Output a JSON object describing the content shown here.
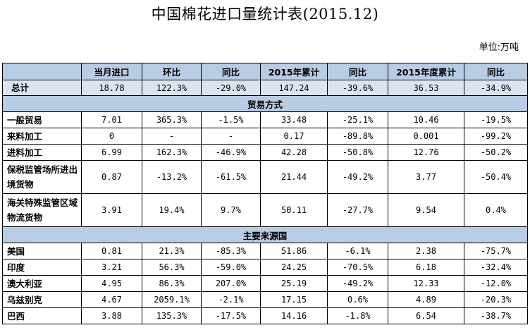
{
  "title": "中国棉花进口量统计表(2015.12)",
  "unit": "单位:万吨",
  "header": [
    "",
    "当月进口",
    "环比",
    "同比",
    "2015年累计",
    "同比",
    "2015年度累计",
    "同比"
  ],
  "total": {
    "label": "总计",
    "values": [
      "18.78",
      "122.3%",
      "-29.0%",
      "147.24",
      "-39.6%",
      "36.53",
      "-34.9%"
    ]
  },
  "sections": [
    {
      "title": "贸易方式",
      "rows": [
        {
          "label": "一般贸易",
          "tall": false,
          "values": [
            "7.01",
            "365.3%",
            "-1.5%",
            "33.48",
            "-25.1%",
            "10.46",
            "-19.5%"
          ]
        },
        {
          "label": "来料加工",
          "tall": false,
          "values": [
            "0",
            "-",
            "-",
            "0.17",
            "-89.8%",
            "0.001",
            "-99.2%"
          ]
        },
        {
          "label": "进料加工",
          "tall": false,
          "values": [
            "6.99",
            "162.3%",
            "-46.9%",
            "42.28",
            "-50.8%",
            "12.76",
            "-50.2%"
          ]
        },
        {
          "label": "保税监管场所进出境货物",
          "tall": true,
          "values": [
            "0.87",
            "-13.2%",
            "-61.5%",
            "21.44",
            "-49.2%",
            "3.77",
            "-50.4%"
          ]
        },
        {
          "label": "海关特殊监管区域物流货物",
          "tall": true,
          "values": [
            "3.91",
            "19.4%",
            "9.7%",
            "50.11",
            "-27.7%",
            "9.54",
            "0.4%"
          ]
        }
      ]
    },
    {
      "title": "主要来源国",
      "rows": [
        {
          "label": "美国",
          "tall": false,
          "values": [
            "0.81",
            "21.3%",
            "-85.3%",
            "51.86",
            "-6.1%",
            "2.38",
            "-75.7%"
          ]
        },
        {
          "label": "印度",
          "tall": false,
          "values": [
            "3.21",
            "56.3%",
            "-59.0%",
            "24.25",
            "-70.5%",
            "6.18",
            "-32.4%"
          ]
        },
        {
          "label": "澳大利亚",
          "tall": false,
          "values": [
            "4.95",
            "86.3%",
            "207.0%",
            "25.19",
            "-49.2%",
            "12.33",
            "-12.0%"
          ]
        },
        {
          "label": "乌兹别克",
          "tall": false,
          "values": [
            "4.67",
            "2059.1%",
            "-2.1%",
            "17.15",
            "0.6%",
            "4.89",
            "-20.3%"
          ]
        },
        {
          "label": "巴西",
          "tall": false,
          "values": [
            "3.88",
            "135.3%",
            "-17.5%",
            "14.16",
            "-1.8%",
            "6.54",
            "-38.7%"
          ]
        }
      ]
    }
  ]
}
